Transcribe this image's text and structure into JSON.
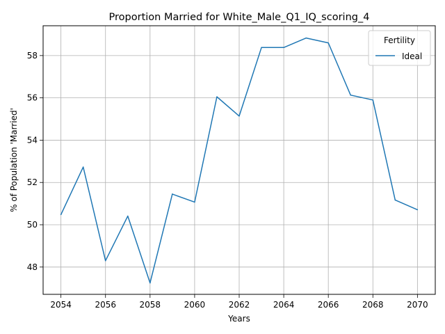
{
  "chart_data": {
    "type": "line",
    "title": "Proportion Married for White_Male_Q1_IQ_scoring_4",
    "xlabel": "Years",
    "ylabel": "% of Population 'Married'",
    "xlim": [
      2053.2,
      2070.8
    ],
    "ylim": [
      46.71,
      59.41
    ],
    "x_ticks": [
      2054,
      2056,
      2058,
      2060,
      2062,
      2064,
      2066,
      2068,
      2070
    ],
    "y_ticks": [
      48,
      50,
      52,
      54,
      56,
      58
    ],
    "grid": true,
    "legend": {
      "title": "Fertility",
      "placement": "top-right"
    },
    "x": [
      2054,
      2055,
      2056,
      2057,
      2058,
      2059,
      2060,
      2061,
      2062,
      2063,
      2064,
      2065,
      2066,
      2067,
      2068,
      2069,
      2070
    ],
    "series": [
      {
        "name": "Ideal",
        "color": "#1f77b4",
        "values": [
          50.48,
          52.73,
          48.3,
          50.41,
          47.25,
          51.45,
          51.07,
          56.05,
          55.14,
          58.38,
          58.38,
          58.83,
          58.6,
          56.13,
          55.9,
          51.17,
          50.71
        ]
      }
    ]
  }
}
